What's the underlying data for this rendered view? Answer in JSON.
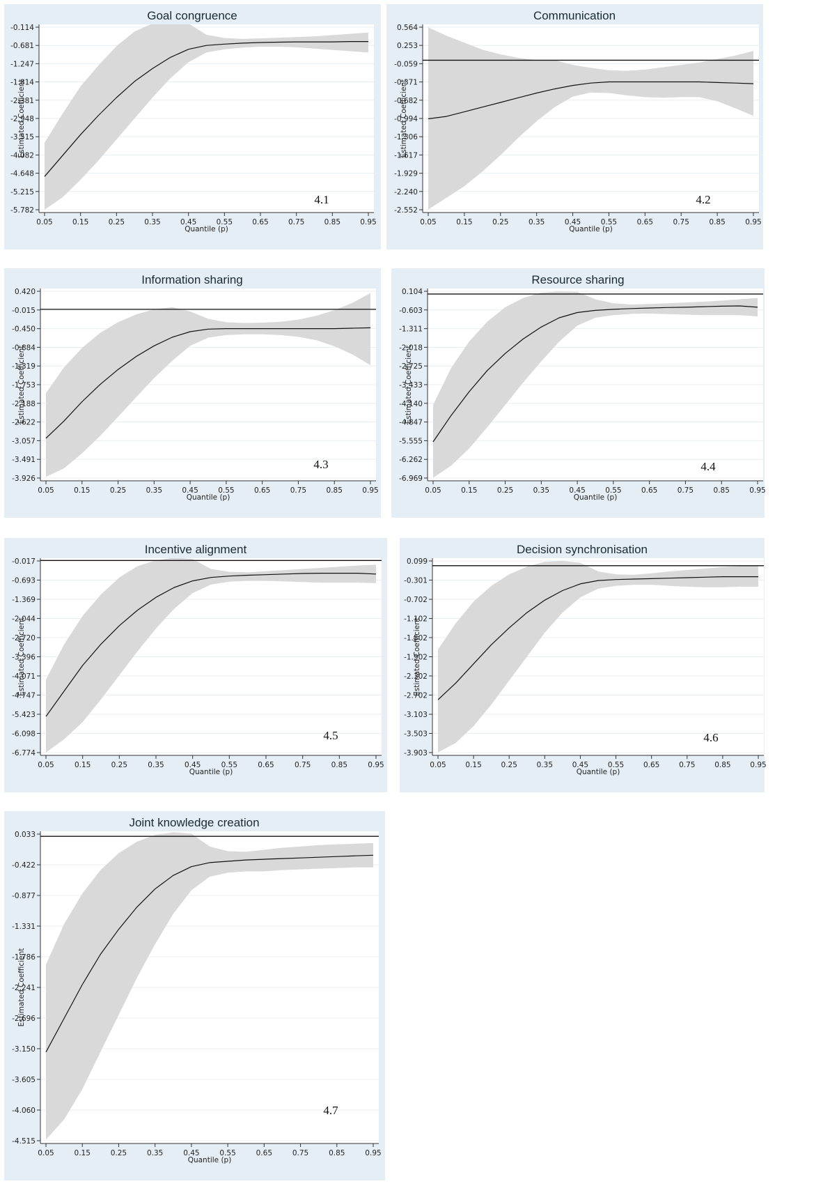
{
  "chart_data": [
    {
      "type": "line",
      "title": "Goal congruence",
      "panel_label": "4.1",
      "xlabel": "Quantile (p)",
      "ylabel": "Estimated Coefficient",
      "x_ticks": [
        "0.05",
        "0.15",
        "0.25",
        "0.35",
        "0.45",
        "0.55",
        "0.65",
        "0.75",
        "0.85",
        "0.95"
      ],
      "y_ticks": [
        "-0.114",
        "-0.681",
        "-1.247",
        "-1.814",
        "-2.381",
        "-2.948",
        "-3.515",
        "-4.082",
        "-4.648",
        "-5.215",
        "-5.782"
      ],
      "ylim": [
        -5.782,
        -0.114
      ],
      "xlim": [
        0.05,
        0.95
      ],
      "reference_line": 0,
      "grid": true,
      "series": [
        {
          "x": [
            0.05,
            0.1,
            0.15,
            0.2,
            0.25,
            0.3,
            0.35,
            0.4,
            0.45,
            0.5,
            0.55,
            0.6,
            0.65,
            0.7,
            0.75,
            0.8,
            0.85,
            0.9,
            0.95
          ],
          "y": [
            -4.75,
            -4.1,
            -3.45,
            -2.85,
            -2.3,
            -1.8,
            -1.4,
            -1.05,
            -0.8,
            -0.68,
            -0.64,
            -0.61,
            -0.59,
            -0.58,
            -0.57,
            -0.57,
            -0.57,
            -0.56,
            -0.56
          ],
          "lower": [
            -5.78,
            -5.4,
            -4.85,
            -4.25,
            -3.6,
            -2.95,
            -2.3,
            -1.7,
            -1.2,
            -0.9,
            -0.8,
            -0.75,
            -0.72,
            -0.72,
            -0.74,
            -0.78,
            -0.82,
            -0.86,
            -0.9
          ],
          "upper": [
            -3.7,
            -2.8,
            -1.95,
            -1.3,
            -0.7,
            -0.25,
            0.0,
            0.1,
            0.0,
            -0.35,
            -0.45,
            -0.48,
            -0.46,
            -0.44,
            -0.42,
            -0.4,
            -0.36,
            -0.32,
            -0.28
          ]
        }
      ]
    },
    {
      "type": "line",
      "title": "Communication",
      "panel_label": "4.2",
      "xlabel": "Quantile (p)",
      "ylabel": "Estimated Coefficient",
      "x_ticks": [
        "0.05",
        "0.15",
        "0.25",
        "0.35",
        "0.45",
        "0.55",
        "0.65",
        "0.75",
        "0.85",
        "0.95"
      ],
      "y_ticks": [
        "0.564",
        "0.253",
        "-0.059",
        "-0.371",
        "-0.682",
        "-0.994",
        "-1.306",
        "-1.617",
        "-1.929",
        "-2.240",
        "-2.552"
      ],
      "ylim": [
        -2.552,
        0.564
      ],
      "xlim": [
        0.05,
        0.95
      ],
      "reference_line": 0,
      "grid": true,
      "series": [
        {
          "x": [
            0.05,
            0.1,
            0.15,
            0.2,
            0.25,
            0.3,
            0.35,
            0.4,
            0.45,
            0.5,
            0.55,
            0.6,
            0.65,
            0.7,
            0.75,
            0.8,
            0.85,
            0.9,
            0.95
          ],
          "y": [
            -1.0,
            -0.96,
            -0.88,
            -0.8,
            -0.72,
            -0.64,
            -0.56,
            -0.49,
            -0.43,
            -0.39,
            -0.37,
            -0.37,
            -0.37,
            -0.37,
            -0.37,
            -0.37,
            -0.38,
            -0.39,
            -0.4
          ],
          "lower": [
            -2.55,
            -2.35,
            -2.15,
            -1.9,
            -1.62,
            -1.32,
            -1.04,
            -0.8,
            -0.62,
            -0.55,
            -0.56,
            -0.6,
            -0.63,
            -0.64,
            -0.63,
            -0.63,
            -0.7,
            -0.82,
            -0.95
          ],
          "upper": [
            0.56,
            0.42,
            0.3,
            0.18,
            0.1,
            0.04,
            0.0,
            0.0,
            -0.08,
            -0.13,
            -0.17,
            -0.18,
            -0.16,
            -0.12,
            -0.08,
            -0.04,
            0.02,
            0.08,
            0.16
          ]
        }
      ]
    },
    {
      "type": "line",
      "title": "Information sharing",
      "panel_label": "4.3",
      "xlabel": "Quantile (p)",
      "ylabel": "Estimated Coefficient",
      "x_ticks": [
        "0.05",
        "0.15",
        "0.25",
        "0.35",
        "0.45",
        "0.55",
        "0.65",
        "0.75",
        "0.85",
        "0.95"
      ],
      "y_ticks": [
        "0.420",
        "-0.015",
        "-0.450",
        "-0.884",
        "-1.319",
        "-1.753",
        "-2.188",
        "-2.622",
        "-3.057",
        "-3.491",
        "-3.926"
      ],
      "ylim": [
        -3.926,
        0.42
      ],
      "xlim": [
        0.05,
        0.95
      ],
      "reference_line": 0,
      "grid": true,
      "series": [
        {
          "x": [
            0.05,
            0.1,
            0.15,
            0.2,
            0.25,
            0.3,
            0.35,
            0.4,
            0.45,
            0.5,
            0.55,
            0.6,
            0.65,
            0.7,
            0.75,
            0.8,
            0.85,
            0.9,
            0.95
          ],
          "y": [
            -3.0,
            -2.6,
            -2.15,
            -1.75,
            -1.4,
            -1.1,
            -0.85,
            -0.65,
            -0.52,
            -0.46,
            -0.45,
            -0.45,
            -0.45,
            -0.45,
            -0.45,
            -0.45,
            -0.45,
            -0.44,
            -0.43
          ],
          "lower": [
            -3.9,
            -3.7,
            -3.35,
            -2.95,
            -2.5,
            -2.05,
            -1.6,
            -1.2,
            -0.85,
            -0.66,
            -0.6,
            -0.58,
            -0.58,
            -0.6,
            -0.64,
            -0.72,
            -0.86,
            -1.05,
            -1.3
          ],
          "upper": [
            -1.95,
            -1.35,
            -0.9,
            -0.55,
            -0.3,
            -0.12,
            0.0,
            0.05,
            -0.05,
            -0.22,
            -0.3,
            -0.32,
            -0.31,
            -0.29,
            -0.24,
            -0.15,
            -0.02,
            0.15,
            0.38
          ]
        }
      ]
    },
    {
      "type": "line",
      "title": "Resource sharing",
      "panel_label": "4.4",
      "xlabel": "Quantile (p)",
      "ylabel": "Estimated Coefficient",
      "x_ticks": [
        "0.05",
        "0.15",
        "0.25",
        "0.35",
        "0.45",
        "0.55",
        "0.65",
        "0.75",
        "0.85",
        "0.95"
      ],
      "y_ticks": [
        "0.104",
        "-0.603",
        "-1.311",
        "-2.018",
        "-2.725",
        "-3.433",
        "-4.140",
        "-4.847",
        "-5.555",
        "-6.262",
        "-6.969"
      ],
      "ylim": [
        -6.969,
        0.104
      ],
      "xlim": [
        0.05,
        0.95
      ],
      "reference_line": 0,
      "grid": true,
      "series": [
        {
          "x": [
            0.05,
            0.1,
            0.15,
            0.2,
            0.25,
            0.3,
            0.35,
            0.4,
            0.45,
            0.5,
            0.55,
            0.6,
            0.65,
            0.7,
            0.75,
            0.8,
            0.85,
            0.9,
            0.95
          ],
          "y": [
            -5.6,
            -4.6,
            -3.7,
            -2.9,
            -2.25,
            -1.7,
            -1.25,
            -0.9,
            -0.7,
            -0.62,
            -0.58,
            -0.55,
            -0.53,
            -0.51,
            -0.5,
            -0.48,
            -0.46,
            -0.45,
            -0.5
          ],
          "lower": [
            -6.96,
            -6.5,
            -5.85,
            -5.05,
            -4.2,
            -3.35,
            -2.55,
            -1.8,
            -1.2,
            -0.9,
            -0.8,
            -0.75,
            -0.74,
            -0.76,
            -0.78,
            -0.8,
            -0.8,
            -0.8,
            -0.85
          ],
          "upper": [
            -4.2,
            -2.8,
            -1.8,
            -1.05,
            -0.5,
            -0.15,
            0.05,
            0.1,
            0.08,
            -0.2,
            -0.35,
            -0.4,
            -0.38,
            -0.35,
            -0.32,
            -0.29,
            -0.25,
            -0.2,
            -0.15
          ]
        }
      ]
    },
    {
      "type": "line",
      "title": "Incentive alignment",
      "panel_label": "4.5",
      "xlabel": "Quantile (p)",
      "ylabel": "Estimated Coefficient",
      "x_ticks": [
        "0.05",
        "0.15",
        "0.25",
        "0.35",
        "0.45",
        "0.55",
        "0.65",
        "0.75",
        "0.85",
        "0.95"
      ],
      "y_ticks": [
        "-0.017",
        "-0.693",
        "-1.369",
        "-2.044",
        "-2.720",
        "-3.396",
        "-4.071",
        "-4.747",
        "-5.423",
        "-6.098",
        "-6.774"
      ],
      "ylim": [
        -6.774,
        -0.017
      ],
      "xlim": [
        0.05,
        0.95
      ],
      "reference_line": 0,
      "grid": true,
      "series": [
        {
          "x": [
            0.05,
            0.1,
            0.15,
            0.2,
            0.25,
            0.3,
            0.35,
            0.4,
            0.45,
            0.5,
            0.55,
            0.6,
            0.65,
            0.7,
            0.75,
            0.8,
            0.85,
            0.9,
            0.95
          ],
          "y": [
            -5.5,
            -4.6,
            -3.7,
            -2.95,
            -2.3,
            -1.75,
            -1.3,
            -0.95,
            -0.72,
            -0.6,
            -0.55,
            -0.52,
            -0.5,
            -0.48,
            -0.46,
            -0.45,
            -0.45,
            -0.45,
            -0.48
          ],
          "lower": [
            -6.77,
            -6.3,
            -5.7,
            -4.9,
            -4.05,
            -3.2,
            -2.4,
            -1.7,
            -1.15,
            -0.85,
            -0.75,
            -0.72,
            -0.72,
            -0.74,
            -0.76,
            -0.78,
            -0.78,
            -0.78,
            -0.8
          ],
          "upper": [
            -4.2,
            -2.95,
            -1.95,
            -1.2,
            -0.6,
            -0.2,
            0.0,
            0.1,
            0.05,
            -0.3,
            -0.4,
            -0.42,
            -0.38,
            -0.34,
            -0.3,
            -0.26,
            -0.22,
            -0.18,
            -0.15
          ]
        }
      ]
    },
    {
      "type": "line",
      "title": "Decision synchronisation",
      "panel_label": "4.6",
      "xlabel": "Quantile (p)",
      "ylabel": "Estimated Coefficient",
      "x_ticks": [
        "0.05",
        "0.15",
        "0.25",
        "0.35",
        "0.45",
        "0.55",
        "0.65",
        "0.75",
        "0.85",
        "0.95"
      ],
      "y_ticks": [
        "0.099",
        "-0.301",
        "-0.702",
        "-1.102",
        "-1.502",
        "-1.902",
        "-2.302",
        "-2.702",
        "-3.103",
        "-3.503",
        "-3.903"
      ],
      "ylim": [
        -3.903,
        0.099
      ],
      "xlim": [
        0.05,
        0.95
      ],
      "reference_line": 0,
      "grid": true,
      "series": [
        {
          "x": [
            0.05,
            0.1,
            0.15,
            0.2,
            0.25,
            0.3,
            0.35,
            0.4,
            0.45,
            0.5,
            0.55,
            0.6,
            0.65,
            0.7,
            0.75,
            0.8,
            0.85,
            0.9,
            0.95
          ],
          "y": [
            -2.8,
            -2.45,
            -2.05,
            -1.65,
            -1.3,
            -0.98,
            -0.72,
            -0.52,
            -0.38,
            -0.31,
            -0.29,
            -0.28,
            -0.27,
            -0.26,
            -0.25,
            -0.24,
            -0.23,
            -0.23,
            -0.23
          ],
          "lower": [
            -3.9,
            -3.7,
            -3.35,
            -2.9,
            -2.4,
            -1.9,
            -1.4,
            -0.98,
            -0.66,
            -0.48,
            -0.42,
            -0.4,
            -0.4,
            -0.42,
            -0.44,
            -0.45,
            -0.45,
            -0.44,
            -0.44
          ],
          "upper": [
            -1.75,
            -1.2,
            -0.75,
            -0.42,
            -0.18,
            -0.02,
            0.08,
            0.1,
            0.06,
            -0.12,
            -0.18,
            -0.19,
            -0.16,
            -0.12,
            -0.09,
            -0.06,
            -0.03,
            -0.01,
            0.0
          ]
        }
      ]
    },
    {
      "type": "line",
      "title": "Joint knowledge creation",
      "panel_label": "4.7",
      "xlabel": "Quantile (p)",
      "ylabel": "Estimated Coefficient",
      "x_ticks": [
        "0.05",
        "0.15",
        "0.25",
        "0.35",
        "0.45",
        "0.55",
        "0.65",
        "0.75",
        "0.85",
        "0.95"
      ],
      "y_ticks": [
        "0.033",
        "-0.422",
        "-0.877",
        "-1.331",
        "-1.786",
        "-2.241",
        "-2.696",
        "-3.150",
        "-3.605",
        "-4.060",
        "-4.515"
      ],
      "ylim": [
        -4.515,
        0.033
      ],
      "xlim": [
        0.05,
        0.95
      ],
      "reference_line": 0,
      "grid": true,
      "series": [
        {
          "x": [
            0.05,
            0.1,
            0.15,
            0.2,
            0.25,
            0.3,
            0.35,
            0.4,
            0.45,
            0.5,
            0.55,
            0.6,
            0.65,
            0.7,
            0.75,
            0.8,
            0.85,
            0.9,
            0.95
          ],
          "y": [
            -3.2,
            -2.7,
            -2.2,
            -1.75,
            -1.38,
            -1.05,
            -0.78,
            -0.58,
            -0.45,
            -0.39,
            -0.37,
            -0.35,
            -0.34,
            -0.33,
            -0.32,
            -0.31,
            -0.3,
            -0.29,
            -0.28
          ],
          "lower": [
            -4.5,
            -4.2,
            -3.75,
            -3.2,
            -2.65,
            -2.1,
            -1.6,
            -1.15,
            -0.8,
            -0.6,
            -0.54,
            -0.52,
            -0.52,
            -0.5,
            -0.49,
            -0.48,
            -0.47,
            -0.46,
            -0.46
          ],
          "upper": [
            -1.9,
            -1.3,
            -0.85,
            -0.5,
            -0.25,
            -0.08,
            0.02,
            0.06,
            0.04,
            -0.15,
            -0.22,
            -0.23,
            -0.2,
            -0.17,
            -0.15,
            -0.13,
            -0.12,
            -0.11,
            -0.1
          ]
        }
      ]
    }
  ]
}
